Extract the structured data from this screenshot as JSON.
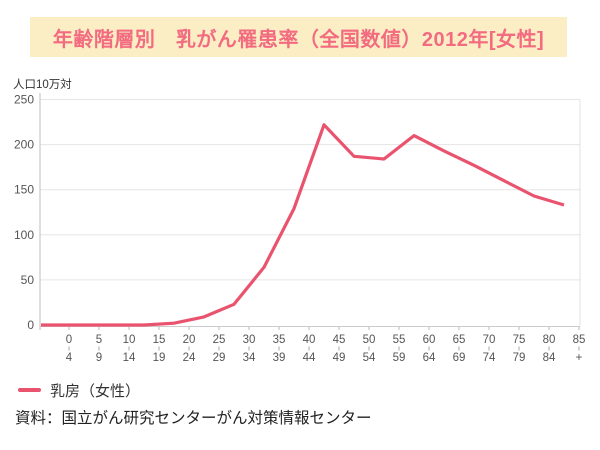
{
  "title": "年齢階層別　乳がん罹患率（全国数値）2012年[女性]",
  "legend": {
    "label": "乳房（女性）"
  },
  "source": "資料：国立がん研究センターがん対策情報センター",
  "colors": {
    "line": "#E9536E",
    "title_text": "#F26B80",
    "title_bg": "#FCEEC4",
    "grid": "#E5E5E5",
    "axis": "#C8C8C8",
    "tick_label": "#555555"
  },
  "chart_data": {
    "type": "line",
    "title": "年齢階層別　乳がん罹患率（全国数値）2012年[女性]",
    "ylabel": "人口10万対",
    "xlabel": "",
    "ylim": [
      0,
      250
    ],
    "yticks": [
      0,
      50,
      100,
      150,
      200,
      250
    ],
    "grid": true,
    "legend_position": "bottom-left",
    "categories": [
      "0-4",
      "5-9",
      "10-14",
      "15-19",
      "20-24",
      "25-29",
      "30-34",
      "35-39",
      "40-44",
      "45-49",
      "50-54",
      "55-59",
      "60-64",
      "65-69",
      "70-74",
      "75-79",
      "80-84",
      "85+"
    ],
    "series": [
      {
        "name": "乳房（女性）",
        "values": [
          0,
          0,
          0,
          0,
          2,
          9,
          23,
          64,
          129,
          222,
          187,
          184,
          210,
          193,
          177,
          160,
          143,
          133
        ]
      }
    ]
  }
}
